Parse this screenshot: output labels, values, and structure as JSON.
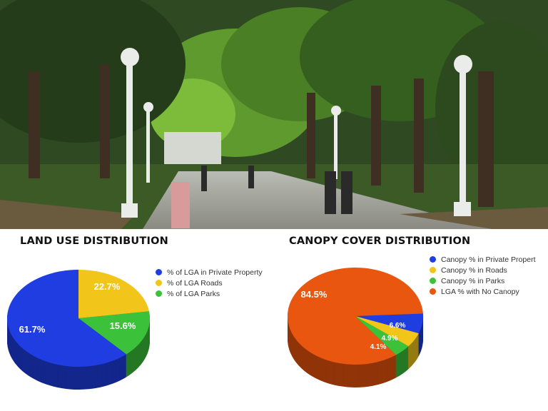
{
  "chart_data": [
    {
      "type": "pie",
      "title": "LAND USE DISTRIBUTION",
      "legend_position": "right",
      "three_d": true,
      "slices": [
        {
          "name": "% of LGA Roads",
          "value": 22.7,
          "label": "22.7%",
          "color": "#f2c51a"
        },
        {
          "name": "% of LGA Parks",
          "value": 15.6,
          "label": "15.6%",
          "color": "#3cc23a"
        },
        {
          "name": "% of LGA in Private Property",
          "value": 61.7,
          "label": "61.7%",
          "color": "#1f3de0"
        }
      ],
      "legend_order": [
        "% of LGA in Private Property",
        "% of LGA Roads",
        "% of LGA Parks"
      ]
    },
    {
      "type": "pie",
      "title": "CANOPY COVER DISTRIBUTION",
      "legend_position": "right",
      "three_d": true,
      "slices": [
        {
          "name": "Canopy % in Private Propert",
          "value": 6.6,
          "label": "6.6%",
          "color": "#1f3de0"
        },
        {
          "name": "Canopy % in Roads",
          "value": 4.9,
          "label": "4.9%",
          "color": "#f2c51a"
        },
        {
          "name": "Canopy % in Parks",
          "value": 4.1,
          "label": "4.1%",
          "color": "#3cc23a"
        },
        {
          "name": "LGA % with No Canopy",
          "value": 84.5,
          "label": "84.5%",
          "color": "#e8560f"
        }
      ],
      "legend_order": [
        "Canopy % in Private Propert",
        "Canopy % in Roads",
        "Canopy % in Parks",
        "LGA % with No Canopy"
      ]
    }
  ],
  "photo": {
    "subject": "park-avenue-photo"
  }
}
